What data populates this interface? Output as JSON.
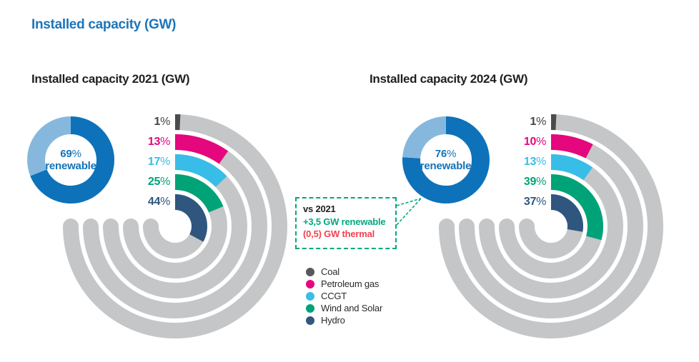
{
  "page": {
    "title": "Installed capacity (GW)",
    "title_color": "#1c75ba",
    "background": "#ffffff"
  },
  "chart_data": [
    {
      "type": "radial-bar-with-donut",
      "title": "Installed capacity 2021 (GW)",
      "sweep_deg": 270,
      "track_color": "#c5c6c7",
      "donut": {
        "renewable_pct": 69,
        "center_value": "69",
        "center_unit": "%",
        "center_caption": "renewable",
        "renewable_color": "#0d72b9",
        "non_renewable_color": "#86b8dd",
        "text_color": "#1273b9"
      },
      "segments": [
        {
          "category": "Coal",
          "pct": 1,
          "label": "1%",
          "color": "#4b4b4d",
          "label_color": "#434446"
        },
        {
          "category": "Petroleum gas",
          "pct": 13,
          "label": "13%",
          "color": "#e5077e",
          "label_color": "#e5077e"
        },
        {
          "category": "CCGT",
          "pct": 17,
          "label": "17%",
          "color": "#38bde8",
          "label_color": "#38bde8"
        },
        {
          "category": "Wind and Solar",
          "pct": 25,
          "label": "25%",
          "color": "#00a378",
          "label_color": "#00a378"
        },
        {
          "category": "Hydro",
          "pct": 44,
          "label": "44%",
          "color": "#2f567e",
          "label_color": "#2f567e"
        }
      ]
    },
    {
      "type": "radial-bar-with-donut",
      "title": "Installed capacity 2024 (GW)",
      "sweep_deg": 270,
      "track_color": "#c5c6c7",
      "donut": {
        "renewable_pct": 76,
        "center_value": "76",
        "center_unit": "%",
        "center_caption": "renewable",
        "renewable_color": "#0d72b9",
        "non_renewable_color": "#86b8dd",
        "text_color": "#1273b9"
      },
      "segments": [
        {
          "category": "Coal",
          "pct": 1,
          "label": "1%",
          "color": "#4b4b4d",
          "label_color": "#434446"
        },
        {
          "category": "Petroleum gas",
          "pct": 10,
          "label": "10%",
          "color": "#e5077e",
          "label_color": "#e5077e"
        },
        {
          "category": "CCGT",
          "pct": 13,
          "label": "13%",
          "color": "#38bde8",
          "label_color": "#38bde8"
        },
        {
          "category": "Wind and Solar",
          "pct": 39,
          "label": "39%",
          "color": "#00a378",
          "label_color": "#00a378"
        },
        {
          "category": "Hydro",
          "pct": 37,
          "label": "37%",
          "color": "#2f567e",
          "label_color": "#2f567e"
        }
      ]
    }
  ],
  "callout": {
    "heading": "vs 2021",
    "lines": [
      {
        "text": "+3,5 GW renewable",
        "color": "#00a87e"
      },
      {
        "text": "(0,5) GW thermal",
        "color": "#ef4150"
      }
    ],
    "border_color": "#00a87e"
  },
  "legend": {
    "items": [
      {
        "label": "Coal",
        "color": "#58595b"
      },
      {
        "label": "Petroleum gas",
        "color": "#e5077e"
      },
      {
        "label": "CCGT",
        "color": "#38bde8"
      },
      {
        "label": "Wind and Solar",
        "color": "#00a378"
      },
      {
        "label": "Hydro",
        "color": "#33567d"
      }
    ]
  }
}
